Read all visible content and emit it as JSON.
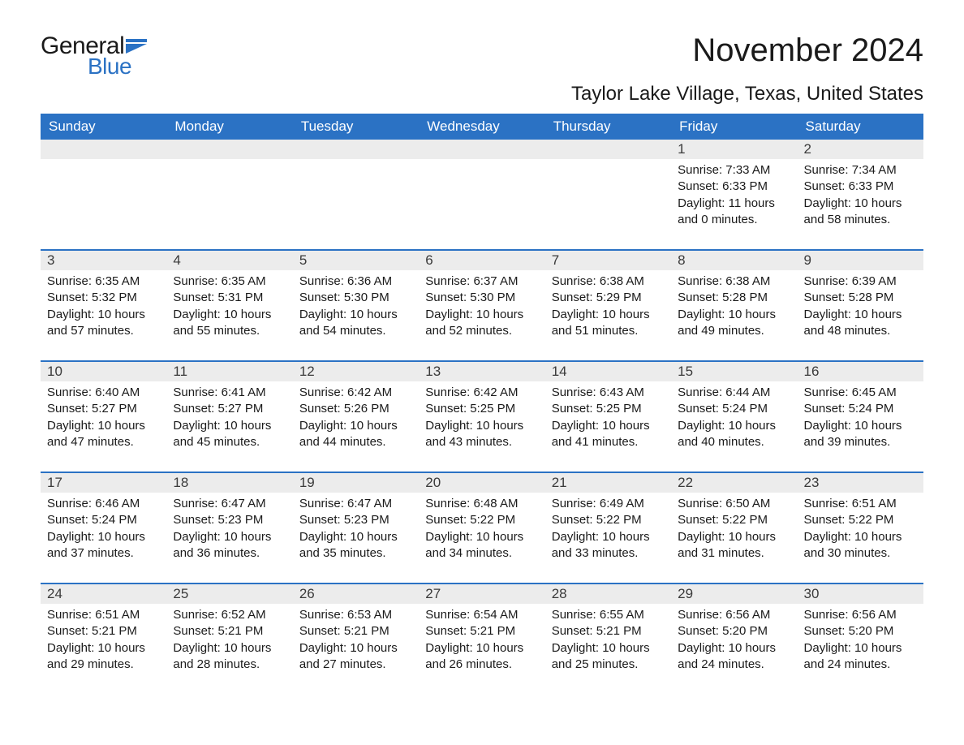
{
  "brand": {
    "general": "General",
    "blue": "Blue",
    "flag_color": "#2b72c4"
  },
  "title": {
    "month_year": "November 2024",
    "location": "Taylor Lake Village, Texas, United States"
  },
  "colors": {
    "header_bg": "#2b72c4",
    "header_text": "#ffffff",
    "daynum_bg": "#ececec",
    "text": "#1a1a1a",
    "week_border": "#2b72c4"
  },
  "days_of_week": [
    "Sunday",
    "Monday",
    "Tuesday",
    "Wednesday",
    "Thursday",
    "Friday",
    "Saturday"
  ],
  "weeks": [
    [
      null,
      null,
      null,
      null,
      null,
      {
        "n": "1",
        "sunrise": "Sunrise: 7:33 AM",
        "sunset": "Sunset: 6:33 PM",
        "d1": "Daylight: 11 hours",
        "d2": "and 0 minutes."
      },
      {
        "n": "2",
        "sunrise": "Sunrise: 7:34 AM",
        "sunset": "Sunset: 6:33 PM",
        "d1": "Daylight: 10 hours",
        "d2": "and 58 minutes."
      }
    ],
    [
      {
        "n": "3",
        "sunrise": "Sunrise: 6:35 AM",
        "sunset": "Sunset: 5:32 PM",
        "d1": "Daylight: 10 hours",
        "d2": "and 57 minutes."
      },
      {
        "n": "4",
        "sunrise": "Sunrise: 6:35 AM",
        "sunset": "Sunset: 5:31 PM",
        "d1": "Daylight: 10 hours",
        "d2": "and 55 minutes."
      },
      {
        "n": "5",
        "sunrise": "Sunrise: 6:36 AM",
        "sunset": "Sunset: 5:30 PM",
        "d1": "Daylight: 10 hours",
        "d2": "and 54 minutes."
      },
      {
        "n": "6",
        "sunrise": "Sunrise: 6:37 AM",
        "sunset": "Sunset: 5:30 PM",
        "d1": "Daylight: 10 hours",
        "d2": "and 52 minutes."
      },
      {
        "n": "7",
        "sunrise": "Sunrise: 6:38 AM",
        "sunset": "Sunset: 5:29 PM",
        "d1": "Daylight: 10 hours",
        "d2": "and 51 minutes."
      },
      {
        "n": "8",
        "sunrise": "Sunrise: 6:38 AM",
        "sunset": "Sunset: 5:28 PM",
        "d1": "Daylight: 10 hours",
        "d2": "and 49 minutes."
      },
      {
        "n": "9",
        "sunrise": "Sunrise: 6:39 AM",
        "sunset": "Sunset: 5:28 PM",
        "d1": "Daylight: 10 hours",
        "d2": "and 48 minutes."
      }
    ],
    [
      {
        "n": "10",
        "sunrise": "Sunrise: 6:40 AM",
        "sunset": "Sunset: 5:27 PM",
        "d1": "Daylight: 10 hours",
        "d2": "and 47 minutes."
      },
      {
        "n": "11",
        "sunrise": "Sunrise: 6:41 AM",
        "sunset": "Sunset: 5:27 PM",
        "d1": "Daylight: 10 hours",
        "d2": "and 45 minutes."
      },
      {
        "n": "12",
        "sunrise": "Sunrise: 6:42 AM",
        "sunset": "Sunset: 5:26 PM",
        "d1": "Daylight: 10 hours",
        "d2": "and 44 minutes."
      },
      {
        "n": "13",
        "sunrise": "Sunrise: 6:42 AM",
        "sunset": "Sunset: 5:25 PM",
        "d1": "Daylight: 10 hours",
        "d2": "and 43 minutes."
      },
      {
        "n": "14",
        "sunrise": "Sunrise: 6:43 AM",
        "sunset": "Sunset: 5:25 PM",
        "d1": "Daylight: 10 hours",
        "d2": "and 41 minutes."
      },
      {
        "n": "15",
        "sunrise": "Sunrise: 6:44 AM",
        "sunset": "Sunset: 5:24 PM",
        "d1": "Daylight: 10 hours",
        "d2": "and 40 minutes."
      },
      {
        "n": "16",
        "sunrise": "Sunrise: 6:45 AM",
        "sunset": "Sunset: 5:24 PM",
        "d1": "Daylight: 10 hours",
        "d2": "and 39 minutes."
      }
    ],
    [
      {
        "n": "17",
        "sunrise": "Sunrise: 6:46 AM",
        "sunset": "Sunset: 5:24 PM",
        "d1": "Daylight: 10 hours",
        "d2": "and 37 minutes."
      },
      {
        "n": "18",
        "sunrise": "Sunrise: 6:47 AM",
        "sunset": "Sunset: 5:23 PM",
        "d1": "Daylight: 10 hours",
        "d2": "and 36 minutes."
      },
      {
        "n": "19",
        "sunrise": "Sunrise: 6:47 AM",
        "sunset": "Sunset: 5:23 PM",
        "d1": "Daylight: 10 hours",
        "d2": "and 35 minutes."
      },
      {
        "n": "20",
        "sunrise": "Sunrise: 6:48 AM",
        "sunset": "Sunset: 5:22 PM",
        "d1": "Daylight: 10 hours",
        "d2": "and 34 minutes."
      },
      {
        "n": "21",
        "sunrise": "Sunrise: 6:49 AM",
        "sunset": "Sunset: 5:22 PM",
        "d1": "Daylight: 10 hours",
        "d2": "and 33 minutes."
      },
      {
        "n": "22",
        "sunrise": "Sunrise: 6:50 AM",
        "sunset": "Sunset: 5:22 PM",
        "d1": "Daylight: 10 hours",
        "d2": "and 31 minutes."
      },
      {
        "n": "23",
        "sunrise": "Sunrise: 6:51 AM",
        "sunset": "Sunset: 5:22 PM",
        "d1": "Daylight: 10 hours",
        "d2": "and 30 minutes."
      }
    ],
    [
      {
        "n": "24",
        "sunrise": "Sunrise: 6:51 AM",
        "sunset": "Sunset: 5:21 PM",
        "d1": "Daylight: 10 hours",
        "d2": "and 29 minutes."
      },
      {
        "n": "25",
        "sunrise": "Sunrise: 6:52 AM",
        "sunset": "Sunset: 5:21 PM",
        "d1": "Daylight: 10 hours",
        "d2": "and 28 minutes."
      },
      {
        "n": "26",
        "sunrise": "Sunrise: 6:53 AM",
        "sunset": "Sunset: 5:21 PM",
        "d1": "Daylight: 10 hours",
        "d2": "and 27 minutes."
      },
      {
        "n": "27",
        "sunrise": "Sunrise: 6:54 AM",
        "sunset": "Sunset: 5:21 PM",
        "d1": "Daylight: 10 hours",
        "d2": "and 26 minutes."
      },
      {
        "n": "28",
        "sunrise": "Sunrise: 6:55 AM",
        "sunset": "Sunset: 5:21 PM",
        "d1": "Daylight: 10 hours",
        "d2": "and 25 minutes."
      },
      {
        "n": "29",
        "sunrise": "Sunrise: 6:56 AM",
        "sunset": "Sunset: 5:20 PM",
        "d1": "Daylight: 10 hours",
        "d2": "and 24 minutes."
      },
      {
        "n": "30",
        "sunrise": "Sunrise: 6:56 AM",
        "sunset": "Sunset: 5:20 PM",
        "d1": "Daylight: 10 hours",
        "d2": "and 24 minutes."
      }
    ]
  ]
}
